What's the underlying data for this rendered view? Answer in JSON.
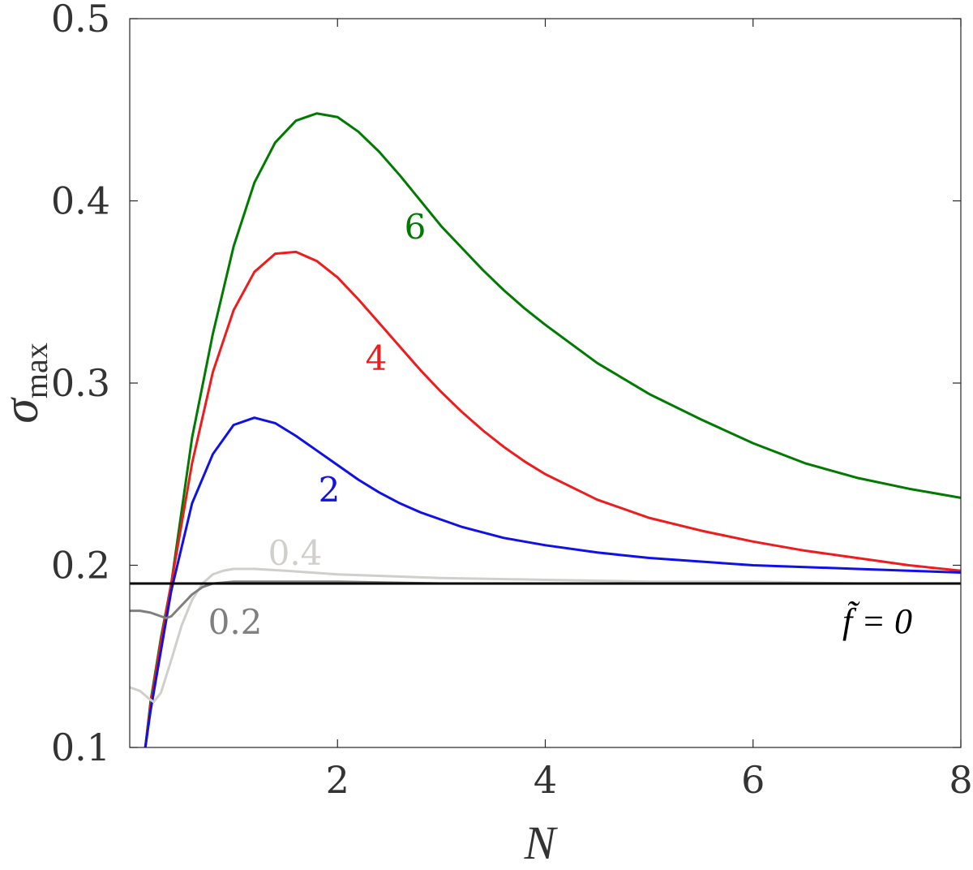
{
  "chart_data": {
    "type": "line",
    "xlabel": "N",
    "ylabel_main": "σ",
    "ylabel_sub": "max",
    "xlim": [
      0.0,
      8.0
    ],
    "ylim": [
      0.1,
      0.5
    ],
    "x_ticks": [
      2,
      4,
      6,
      8
    ],
    "x_tick_labels": [
      "2",
      "4",
      "6",
      "8"
    ],
    "y_ticks": [
      0.1,
      0.2,
      0.3,
      0.4,
      0.5
    ],
    "y_tick_labels": [
      "0.1",
      "0.2",
      "0.3",
      "0.4",
      "0.5"
    ],
    "grid": false,
    "series": [
      {
        "label": "6",
        "color": "#007a00",
        "x": [
          0.15,
          0.2,
          0.3,
          0.4,
          0.6,
          0.8,
          1.0,
          1.2,
          1.4,
          1.6,
          1.8,
          2.0,
          2.2,
          2.4,
          2.6,
          2.8,
          3.0,
          3.2,
          3.4,
          3.6,
          3.8,
          4.0,
          4.5,
          5.0,
          5.5,
          6.0,
          6.5,
          7.0,
          7.5,
          8.0
        ],
        "y": [
          0.1,
          0.125,
          0.16,
          0.19,
          0.27,
          0.327,
          0.375,
          0.41,
          0.432,
          0.444,
          0.448,
          0.446,
          0.438,
          0.427,
          0.414,
          0.4,
          0.386,
          0.374,
          0.362,
          0.351,
          0.341,
          0.332,
          0.311,
          0.294,
          0.28,
          0.267,
          0.256,
          0.248,
          0.242,
          0.237
        ]
      },
      {
        "label": "4",
        "color": "#ee1c1c",
        "x": [
          0.15,
          0.2,
          0.3,
          0.4,
          0.6,
          0.8,
          1.0,
          1.2,
          1.4,
          1.6,
          1.8,
          2.0,
          2.2,
          2.4,
          2.6,
          2.8,
          3.0,
          3.2,
          3.4,
          3.6,
          3.8,
          4.0,
          4.5,
          5.0,
          5.5,
          6.0,
          6.5,
          7.0,
          7.5,
          8.0
        ],
        "y": [
          0.1,
          0.123,
          0.158,
          0.19,
          0.256,
          0.306,
          0.34,
          0.361,
          0.371,
          0.372,
          0.367,
          0.358,
          0.346,
          0.333,
          0.32,
          0.307,
          0.295,
          0.284,
          0.274,
          0.265,
          0.257,
          0.25,
          0.236,
          0.226,
          0.219,
          0.213,
          0.208,
          0.204,
          0.2,
          0.197
        ]
      },
      {
        "label": "2",
        "color": "#1010e8",
        "x": [
          0.15,
          0.2,
          0.3,
          0.4,
          0.6,
          0.8,
          1.0,
          1.2,
          1.4,
          1.6,
          1.8,
          2.0,
          2.2,
          2.4,
          2.6,
          2.8,
          3.0,
          3.2,
          3.4,
          3.6,
          3.8,
          4.0,
          4.5,
          5.0,
          5.5,
          6.0,
          6.5,
          7.0,
          7.5,
          8.0
        ],
        "y": [
          0.1,
          0.12,
          0.153,
          0.186,
          0.234,
          0.261,
          0.277,
          0.281,
          0.278,
          0.271,
          0.263,
          0.255,
          0.247,
          0.24,
          0.234,
          0.229,
          0.225,
          0.221,
          0.218,
          0.215,
          0.213,
          0.211,
          0.207,
          0.204,
          0.202,
          0.2,
          0.199,
          0.198,
          0.197,
          0.196
        ]
      },
      {
        "label": "0.4",
        "color": "#d0cfcc",
        "x": [
          0.0,
          0.1,
          0.18,
          0.23,
          0.3,
          0.4,
          0.5,
          0.6,
          0.7,
          0.8,
          0.9,
          1.0,
          1.2,
          1.5,
          2.0,
          3.0,
          4.0,
          5.0,
          6.0,
          7.0,
          8.0
        ],
        "y": [
          0.133,
          0.131,
          0.127,
          0.125,
          0.13,
          0.148,
          0.167,
          0.181,
          0.19,
          0.195,
          0.197,
          0.198,
          0.198,
          0.197,
          0.195,
          0.193,
          0.192,
          0.191,
          0.191,
          0.19,
          0.19
        ]
      },
      {
        "label": "0.2",
        "color": "#7f7f7f",
        "x": [
          0.0,
          0.1,
          0.2,
          0.3,
          0.35,
          0.4,
          0.5,
          0.6,
          0.7,
          0.8,
          1.0,
          1.2,
          1.5,
          2.0,
          3.0,
          4.0,
          5.0,
          6.0,
          7.0,
          8.0
        ],
        "y": [
          0.175,
          0.175,
          0.174,
          0.172,
          0.171,
          0.172,
          0.178,
          0.184,
          0.188,
          0.19,
          0.191,
          0.191,
          0.191,
          0.191,
          0.19,
          0.19,
          0.19,
          0.19,
          0.19,
          0.19
        ]
      },
      {
        "label": "f̃ = 0",
        "color": "#000000",
        "x": [
          0.0,
          8.0
        ],
        "y": [
          0.19,
          0.19
        ]
      }
    ]
  }
}
